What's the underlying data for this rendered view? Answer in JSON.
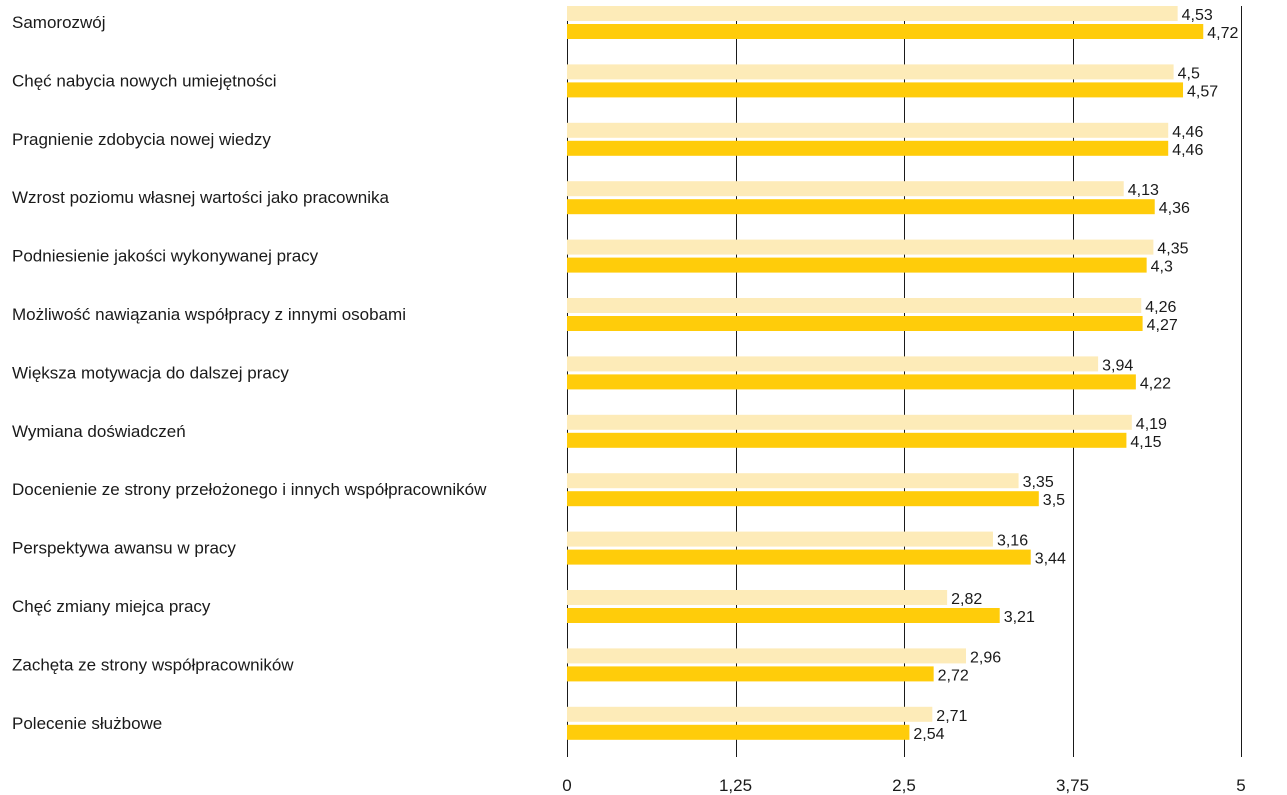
{
  "chart_data": {
    "type": "bar",
    "orientation": "horizontal",
    "categories": [
      "Samorozwój",
      "Chęć nabycia nowych umiejętności",
      "Pragnienie zdobycia nowej wiedzy",
      "Wzrost poziomu własnej wartości jako pracownika",
      "Podniesienie jakości wykonywanej pracy",
      "Możliwość nawiązania współpracy z innymi osobami",
      "Większa motywacja do dalszej pracy",
      "Wymiana doświadczeń",
      "Docenienie ze strony przełożonego i innych współpracowników",
      "Perspektywa awansu w pracy",
      "Chęć zmiany miejca pracy",
      "Zachęta ze strony współpracowników",
      "Polecenie służbowe"
    ],
    "series": [
      {
        "color": "#FDEBB8",
        "values": [
          4.53,
          4.5,
          4.46,
          4.13,
          4.35,
          4.26,
          3.94,
          4.19,
          3.35,
          3.16,
          2.82,
          2.96,
          2.71
        ],
        "labels": [
          "4,53",
          "4,5",
          "4,46",
          "4,13",
          "4,35",
          "4,26",
          "3,94",
          "4,19",
          "3,35",
          "3,16",
          "2,82",
          "2,96",
          "2,71"
        ]
      },
      {
        "color": "#FFCC0A",
        "values": [
          4.72,
          4.57,
          4.46,
          4.36,
          4.3,
          4.27,
          4.22,
          4.15,
          3.5,
          3.44,
          3.21,
          2.72,
          2.54
        ],
        "labels": [
          "4,72",
          "4,57",
          "4,46",
          "4,36",
          "4,3",
          "4,27",
          "4,22",
          "4,15",
          "3,5",
          "3,44",
          "3,21",
          "2,72",
          "2,54"
        ]
      }
    ],
    "xlim": [
      0,
      5
    ],
    "ticks": [
      0,
      1.25,
      2.5,
      3.75,
      5
    ],
    "tick_labels": [
      "0",
      "1,25",
      "2,5",
      "3,75",
      "5"
    ],
    "grid": true
  }
}
